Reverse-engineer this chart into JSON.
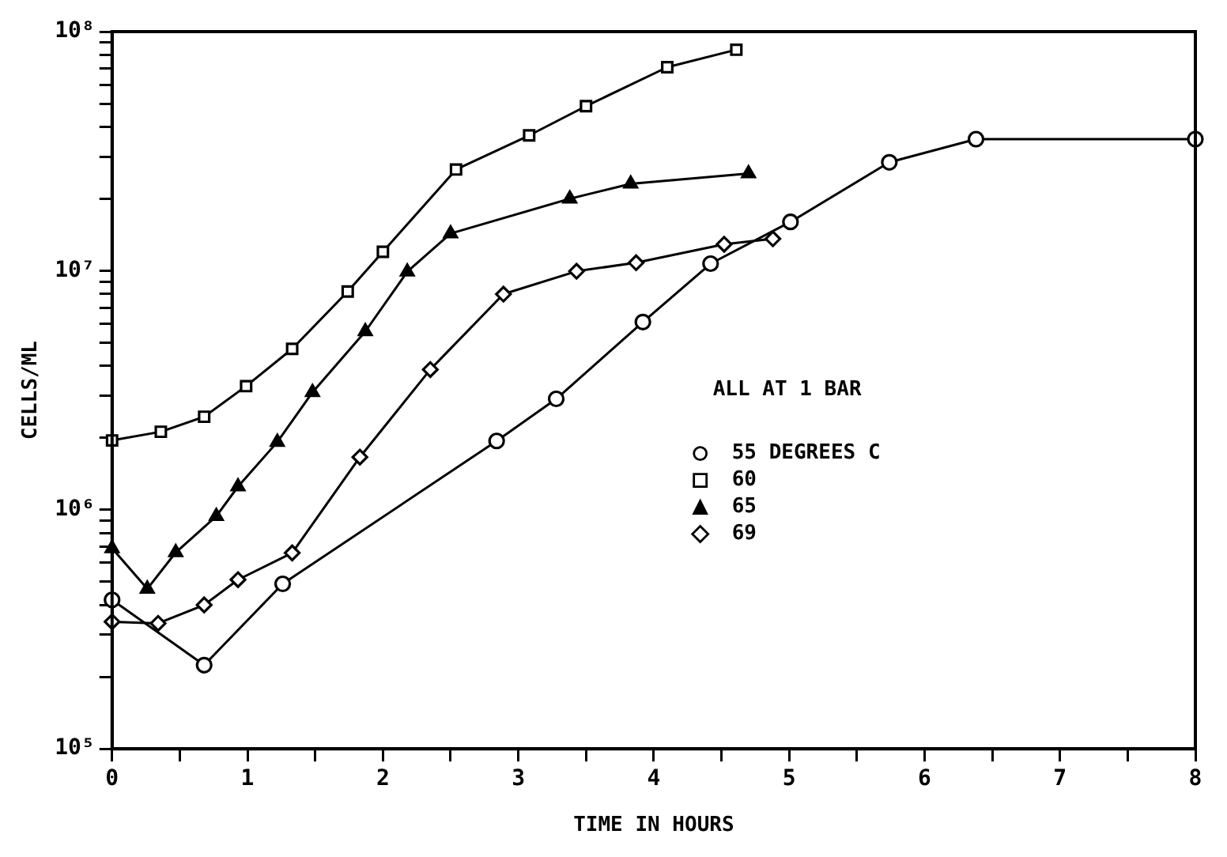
{
  "chart_data": {
    "type": "line",
    "xlabel": "TIME IN HOURS",
    "ylabel": "CELLS/ML",
    "log": "y",
    "grid": false,
    "legend": "right",
    "annotations": [
      "ALL AT 1 BAR"
    ],
    "xlim": [
      0,
      8
    ],
    "xticks": [
      0,
      {
        "value": 0.5,
        "label": null
      },
      1,
      {
        "value": 1.5,
        "label": null
      },
      2,
      {
        "value": 2.5,
        "label": null
      },
      3,
      {
        "value": 3.5,
        "label": null
      },
      4,
      {
        "value": 4.5,
        "label": null
      },
      5,
      {
        "value": 5.5,
        "label": null
      },
      6,
      {
        "value": 6.5,
        "label": null
      },
      7,
      {
        "value": 7.5,
        "label": null
      },
      8
    ],
    "ylim": [
      100000,
      100000000
    ],
    "yticks": [
      {
        "value": 100000,
        "label": "10⁵"
      },
      {
        "value": 200000,
        "label": null
      },
      {
        "value": 300000,
        "label": null
      },
      {
        "value": 400000,
        "label": null
      },
      {
        "value": 500000,
        "label": null
      },
      {
        "value": 600000,
        "label": null
      },
      {
        "value": 700000,
        "label": null
      },
      {
        "value": 800000,
        "label": null
      },
      {
        "value": 900000,
        "label": null
      },
      {
        "value": 1000000,
        "label": "10⁶"
      },
      {
        "value": 2000000,
        "label": null
      },
      {
        "value": 3000000,
        "label": null
      },
      {
        "value": 4000000,
        "label": null
      },
      {
        "value": 5000000,
        "label": null
      },
      {
        "value": 6000000,
        "label": null
      },
      {
        "value": 7000000,
        "label": null
      },
      {
        "value": 8000000,
        "label": null
      },
      {
        "value": 9000000,
        "label": null
      },
      {
        "value": 10000000,
        "label": "10⁷"
      },
      {
        "value": 20000000,
        "label": null
      },
      {
        "value": 30000000,
        "label": null
      },
      {
        "value": 40000000,
        "label": null
      },
      {
        "value": 50000000,
        "label": null
      },
      {
        "value": 60000000,
        "label": null
      },
      {
        "value": 70000000,
        "label": null
      },
      {
        "value": 80000000,
        "label": null
      },
      {
        "value": 90000000,
        "label": null
      },
      {
        "value": 100000000,
        "label": "10⁸"
      }
    ],
    "series": [
      {
        "name": "55 DEGREES C",
        "color": "#000000",
        "marker": "circle",
        "x": [
          0,
          0.68,
          1.26,
          2.84,
          3.28,
          3.92,
          4.42,
          5.01,
          5.74,
          6.38,
          8
        ],
        "values": [
          420000,
          224000,
          490000,
          1940000,
          2910000,
          6100000,
          10700000,
          16000000,
          28400000,
          35500000,
          35500000
        ]
      },
      {
        "name": "60",
        "color": "#000000",
        "marker": "square",
        "x": [
          0,
          0.36,
          0.68,
          0.99,
          1.33,
          1.74,
          2.0,
          2.54,
          3.08,
          3.5,
          4.1,
          4.61
        ],
        "values": [
          1950000,
          2120000,
          2450000,
          3290000,
          4710000,
          8180000,
          12000000,
          26500000,
          36800000,
          48800000,
          71000000,
          84000000
        ]
      },
      {
        "name": "65",
        "color": "#000000",
        "marker": "triangle",
        "x": [
          0,
          0.26,
          0.47,
          0.77,
          0.93,
          1.22,
          1.48,
          1.87,
          2.18,
          2.5,
          3.38,
          3.83,
          4.7
        ],
        "values": [
          690000,
          467000,
          663000,
          940000,
          1250000,
          1920000,
          3100000,
          5570000,
          9900000,
          14300000,
          20000000,
          23100000,
          25500000
        ]
      },
      {
        "name": "69",
        "color": "#000000",
        "marker": "diamond",
        "x": [
          0,
          0.34,
          0.68,
          0.93,
          1.33,
          1.83,
          2.35,
          2.89,
          3.43,
          3.87,
          4.52,
          4.88
        ],
        "values": [
          340000,
          335000,
          400000,
          510000,
          660000,
          1660000,
          3860000,
          7980000,
          9950000,
          10800000,
          12900000,
          13600000
        ]
      }
    ]
  }
}
